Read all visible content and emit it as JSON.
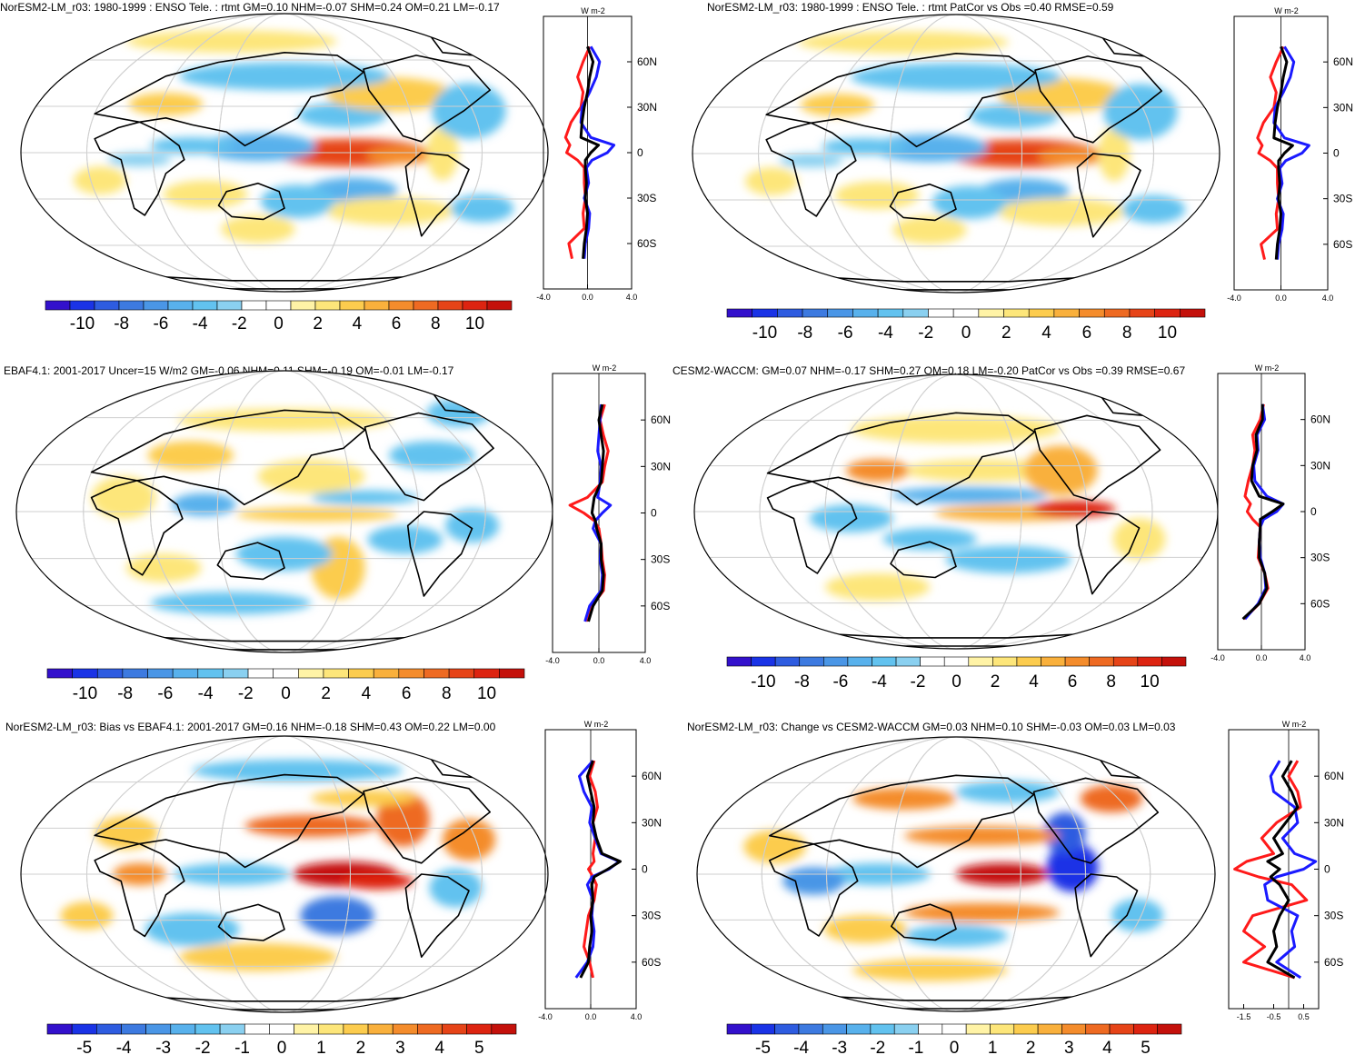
{
  "colors": {
    "palette": [
      "#3311cc",
      "#1a33e6",
      "#2e5ce0",
      "#3d7ae0",
      "#4a96e6",
      "#58b1ec",
      "#62c2ef",
      "#8ad0f0",
      "#ffffff",
      "#ffffff",
      "#fff3a6",
      "#fde67a",
      "#fccc4e",
      "#f9b03c",
      "#f48c2c",
      "#ee6a22",
      "#e64418",
      "#dd2411",
      "#c4110b"
    ],
    "obs_line": "#ff1a1a",
    "model_line": "#1a1aff",
    "combo_line": "#000000"
  },
  "zonal_axis_unit": "W m-2",
  "lat_ticks": [
    "60N",
    "30N",
    "0",
    "30S",
    "60S"
  ],
  "chart_data": [
    {
      "id": "a",
      "type": "heatmap",
      "title": "NorESM2-LM_r03: 1980-1999 : ENSO Tele. : rtmt GM=0.10 NHM=-0.07 SHM=0.24 OM=0.21 LM=-0.17",
      "colorbar_labels": [
        "-10",
        "-8",
        "-6",
        "-4",
        "-2",
        "0",
        "2",
        "4",
        "6",
        "8",
        "10"
      ],
      "color_range": [
        -10,
        10
      ],
      "zonal_xticks": [
        "-4.0",
        "0.0",
        "4.0"
      ],
      "zonal_xlim": [
        -4,
        4
      ],
      "zonal_lat": [
        70,
        60,
        50,
        40,
        30,
        20,
        10,
        5,
        0,
        -5,
        -10,
        -20,
        -30,
        -40,
        -50,
        -60,
        -70
      ],
      "zonal_series": [
        {
          "name": "obs",
          "values": [
            0.2,
            -0.4,
            -0.9,
            -0.4,
            -0.6,
            -1.5,
            -2.0,
            -1.6,
            -1.9,
            -0.9,
            -0.3,
            -0.3,
            -0.2,
            -0.4,
            -0.3,
            -1.7,
            -1.4
          ]
        },
        {
          "name": "model",
          "values": [
            0.3,
            1.1,
            0.8,
            0.2,
            -0.5,
            -0.6,
            0.3,
            2.4,
            1.8,
            0.4,
            -0.1,
            0.1,
            -0.3,
            0.2,
            0.1,
            -0.2,
            -0.3
          ]
        },
        {
          "name": "diff",
          "values": [
            0.0,
            0.5,
            0.2,
            0.0,
            -0.3,
            -0.5,
            -0.6,
            1.0,
            0.3,
            -0.2,
            -0.2,
            -0.1,
            -0.2,
            0.0,
            -0.1,
            -0.3,
            -0.4
          ]
        }
      ]
    },
    {
      "id": "b",
      "type": "heatmap",
      "title": "NorESM2-LM_r03: 1980-1999 : ENSO Tele. : rtmt PatCor vs Obs =0.40 RMSE=0.59",
      "colorbar_labels": [
        "-10",
        "-8",
        "-6",
        "-4",
        "-2",
        "0",
        "2",
        "4",
        "6",
        "8",
        "10"
      ],
      "color_range": [
        -10,
        10
      ],
      "zonal_xticks": [
        "-4.0",
        "0.0",
        "4.0"
      ],
      "zonal_xlim": [
        -4,
        4
      ],
      "zonal_lat": [
        70,
        60,
        50,
        40,
        30,
        20,
        10,
        5,
        0,
        -5,
        -10,
        -20,
        -30,
        -40,
        -50,
        -60,
        -70
      ],
      "zonal_series": [
        {
          "name": "obs",
          "values": [
            0.2,
            -0.4,
            -0.9,
            -0.4,
            -0.6,
            -1.5,
            -2.0,
            -1.6,
            -1.9,
            -0.9,
            -0.3,
            -0.3,
            -0.2,
            -0.4,
            -0.3,
            -1.7,
            -1.4
          ]
        },
        {
          "name": "model",
          "values": [
            0.3,
            1.1,
            0.8,
            0.2,
            -0.5,
            -0.6,
            0.3,
            2.4,
            1.8,
            0.4,
            -0.1,
            0.1,
            -0.3,
            0.2,
            0.1,
            -0.2,
            -0.3
          ]
        },
        {
          "name": "diff",
          "values": [
            0.0,
            0.5,
            0.2,
            0.0,
            -0.3,
            -0.5,
            -0.6,
            1.0,
            0.3,
            -0.2,
            -0.2,
            -0.1,
            -0.2,
            0.0,
            -0.1,
            -0.3,
            -0.4
          ]
        }
      ]
    },
    {
      "id": "c",
      "type": "heatmap",
      "title": "EBAF4.1: 2001-2017 Uncer=15 W/m2 GM=-0.06 NHM=0.11 SHM=-0.19 OM=-0.01 LM=-0.17",
      "colorbar_labels": [
        "-10",
        "-8",
        "-6",
        "-4",
        "-2",
        "0",
        "2",
        "4",
        "6",
        "8",
        "10"
      ],
      "color_range": [
        -10,
        10
      ],
      "zonal_xticks": [
        "-4.0",
        "0.0",
        "4.0"
      ],
      "zonal_xlim": [
        -4,
        4
      ],
      "zonal_lat": [
        70,
        60,
        50,
        40,
        30,
        20,
        10,
        5,
        0,
        -5,
        -10,
        -20,
        -30,
        -40,
        -50,
        -60,
        -70
      ],
      "zonal_series": [
        {
          "name": "obs",
          "values": [
            0.5,
            0.1,
            0.4,
            0.8,
            0.5,
            0.3,
            -1.0,
            -2.5,
            -1.3,
            -0.4,
            0.0,
            0.2,
            0.3,
            0.5,
            0.4,
            -0.6,
            -1.1
          ]
        },
        {
          "name": "model",
          "values": [
            0.2,
            0.1,
            0.0,
            -0.1,
            0.2,
            0.1,
            -0.1,
            1.0,
            0.3,
            -0.3,
            -0.5,
            0.2,
            0.1,
            0.3,
            0.2,
            -0.8,
            -1.2
          ]
        },
        {
          "name": "diff",
          "values": [
            0.3,
            0.0,
            0.2,
            0.4,
            0.3,
            0.2,
            -0.4,
            -0.5,
            -0.6,
            -0.3,
            -0.2,
            0.2,
            0.2,
            0.4,
            0.3,
            -0.5,
            -0.9
          ]
        }
      ]
    },
    {
      "id": "d",
      "type": "heatmap",
      "title": "CESM2-WACCM: GM=0.07 NHM=-0.17 SHM=0.27 OM=0.18 LM=-0.20 PatCor vs Obs =0.39 RMSE=0.67",
      "colorbar_labels": [
        "-10",
        "-8",
        "-6",
        "-4",
        "-2",
        "0",
        "2",
        "4",
        "6",
        "8",
        "10"
      ],
      "color_range": [
        -10,
        10
      ],
      "zonal_xticks": [
        "-4.0",
        "0.0",
        "4.0"
      ],
      "zonal_xlim": [
        -4,
        4
      ],
      "zonal_lat": [
        70,
        60,
        50,
        40,
        30,
        20,
        10,
        5,
        0,
        -5,
        -10,
        -20,
        -30,
        -40,
        -50,
        -60,
        -70
      ],
      "zonal_series": [
        {
          "name": "obs",
          "values": [
            0.2,
            -0.1,
            -0.8,
            -0.6,
            -0.8,
            -1.2,
            -1.5,
            -1.0,
            -1.3,
            -0.8,
            -0.1,
            -0.2,
            -0.3,
            0.3,
            0.6,
            -0.2,
            -1.6
          ]
        },
        {
          "name": "model",
          "values": [
            0.1,
            0.3,
            -0.4,
            -0.3,
            -0.7,
            -0.6,
            0.5,
            2.0,
            1.4,
            0.2,
            -0.1,
            -0.2,
            -0.1,
            0.3,
            0.4,
            -0.3,
            -1.5
          ]
        },
        {
          "name": "diff",
          "values": [
            0.1,
            0.1,
            -0.5,
            -0.4,
            -0.8,
            -0.9,
            -0.2,
            2.0,
            1.0,
            -0.1,
            -0.1,
            -0.2,
            -0.2,
            0.3,
            0.5,
            -0.2,
            -1.7
          ]
        }
      ]
    },
    {
      "id": "e",
      "type": "heatmap",
      "title": "NorESM2-LM_r03: Bias vs EBAF4.1: 2001-2017 GM=0.16 NHM=-0.18 SHM=0.43 OM=0.22 LM=0.00",
      "colorbar_labels": [
        "-5",
        "-4",
        "-3",
        "-2",
        "-1",
        "0",
        "1",
        "2",
        "3",
        "4",
        "5"
      ],
      "color_range": [
        -5,
        5
      ],
      "zonal_xticks": [
        "-4.0",
        "0.0",
        "4.0"
      ],
      "zonal_xlim": [
        -4,
        4
      ],
      "zonal_lat": [
        70,
        60,
        50,
        40,
        30,
        20,
        10,
        5,
        0,
        -5,
        -10,
        -20,
        -30,
        -40,
        -50,
        -60,
        -70
      ],
      "zonal_series": [
        {
          "name": "obs",
          "values": [
            0.3,
            -0.1,
            0.4,
            0.6,
            0.2,
            0.4,
            0.2,
            0.3,
            -0.2,
            0.2,
            0.5,
            0.3,
            -0.2,
            -0.4,
            -0.6,
            -0.1,
            0.2
          ]
        },
        {
          "name": "model",
          "values": [
            0.2,
            -1.0,
            -0.6,
            0.1,
            -0.1,
            0.4,
            0.9,
            2.5,
            1.6,
            0.1,
            -0.3,
            0.2,
            0.1,
            0.3,
            0.2,
            -0.3,
            -1.3
          ]
        },
        {
          "name": "diff",
          "values": [
            0.2,
            -0.3,
            0.0,
            0.3,
            0.2,
            0.5,
            1.0,
            2.6,
            1.5,
            0.3,
            0.1,
            0.2,
            0.0,
            0.1,
            -0.1,
            -0.2,
            -0.9
          ]
        }
      ]
    },
    {
      "id": "f",
      "type": "heatmap",
      "title": "NorESM2-LM_r03: Change vs CESM2-WACCM GM=0.03 NHM=0.10 SHM=-0.03 OM=0.03 LM=0.03",
      "colorbar_labels": [
        "-5",
        "-4",
        "-3",
        "-2",
        "-1",
        "0",
        "1",
        "2",
        "3",
        "4",
        "5"
      ],
      "color_range": [
        -5,
        5
      ],
      "zonal_xticks": [
        "-1.5",
        "-0.5",
        "0.5"
      ],
      "zonal_xlim": [
        -2.0,
        1.0
      ],
      "zonal_lat": [
        70,
        60,
        50,
        40,
        30,
        20,
        10,
        5,
        0,
        -5,
        -10,
        -20,
        -30,
        -40,
        -50,
        -60,
        -70
      ],
      "zonal_series": [
        {
          "name": "obs",
          "values": [
            0.3,
            0.0,
            0.3,
            0.4,
            -0.4,
            -0.9,
            -0.5,
            -1.4,
            -1.8,
            -1.0,
            0.1,
            0.6,
            -1.2,
            -1.5,
            -0.8,
            -1.5,
            0.2
          ]
        },
        {
          "name": "model",
          "values": [
            -0.3,
            -0.6,
            -0.5,
            0.2,
            0.3,
            -0.2,
            0.2,
            0.9,
            0.5,
            -0.4,
            -0.8,
            -0.7,
            0.3,
            0.1,
            0.2,
            -0.4,
            0.4
          ]
        },
        {
          "name": "diff",
          "values": [
            0.1,
            -0.2,
            0.1,
            0.3,
            -0.1,
            -0.5,
            -0.2,
            -0.7,
            -0.3,
            -0.6,
            -0.3,
            0.0,
            -0.3,
            -0.5,
            -0.4,
            -0.7,
            0.2
          ]
        }
      ]
    }
  ]
}
